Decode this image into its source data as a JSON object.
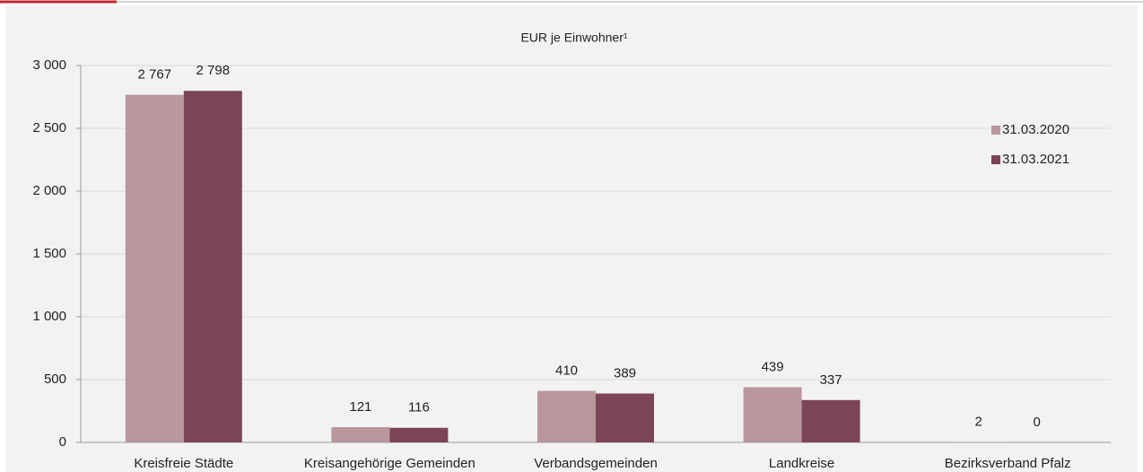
{
  "chart_data": {
    "type": "bar",
    "title": "EUR je Einwohner¹",
    "categories": [
      "Kreisfreie Städte",
      "Kreisangehörige Gemeinden",
      "Verbandsgemeinden",
      "Landkreise",
      "Bezirksverband Pfalz"
    ],
    "series": [
      {
        "name": "31.03.2020",
        "color": "#b9979d",
        "values": [
          2767,
          121,
          410,
          439,
          2
        ],
        "value_labels": [
          "2 767",
          "121",
          "410",
          "439",
          "2"
        ]
      },
      {
        "name": "31.03.2021",
        "color": "#7b4457",
        "values": [
          2798,
          116,
          389,
          337,
          0
        ],
        "value_labels": [
          "2 798",
          "116",
          "389",
          "337",
          "0"
        ]
      }
    ],
    "ylim": [
      0,
      3000
    ],
    "yticks": [
      0,
      500,
      {
        "value": 1000,
        "label": "1 000"
      },
      {
        "value": 1500,
        "label": "1 500"
      },
      {
        "value": 2000,
        "label": "2 000"
      },
      {
        "value": 2500,
        "label": "2 500"
      },
      {
        "value": 3000,
        "label": "3 000"
      }
    ],
    "grid": true,
    "legend": "right"
  }
}
